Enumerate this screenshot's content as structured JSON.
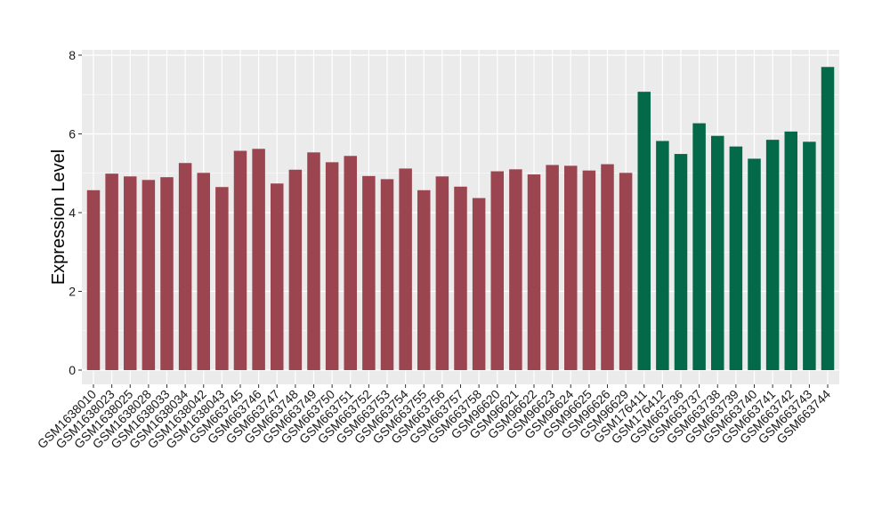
{
  "chart_data": {
    "type": "bar",
    "title": "",
    "xlabel": "",
    "ylabel": "Expression Level",
    "ylim": [
      0,
      8
    ],
    "yticks": [
      0,
      2,
      4,
      6,
      8
    ],
    "grid": true,
    "legend": "none",
    "colors": {
      "group_a": "#9a4550",
      "group_b": "#046948",
      "panel": "#ebebeb",
      "gridline": "#ffffff"
    },
    "categories": [
      "GSM1638010",
      "GSM1638023",
      "GSM1638025",
      "GSM1638028",
      "GSM1638033",
      "GSM1638034",
      "GSM1638042",
      "GSM1638043",
      "GSM663745",
      "GSM663746",
      "GSM663747",
      "GSM663748",
      "GSM663749",
      "GSM663750",
      "GSM663751",
      "GSM663752",
      "GSM663753",
      "GSM663754",
      "GSM663755",
      "GSM663756",
      "GSM663757",
      "GSM663758",
      "GSM96620",
      "GSM96621",
      "GSM96622",
      "GSM96623",
      "GSM96624",
      "GSM96625",
      "GSM96626",
      "GSM96629",
      "GSM176411",
      "GSM176412",
      "GSM663736",
      "GSM663737",
      "GSM663738",
      "GSM663739",
      "GSM663740",
      "GSM663741",
      "GSM663742",
      "GSM663743",
      "GSM663744"
    ],
    "values": [
      4.57,
      4.99,
      4.92,
      4.83,
      4.9,
      5.26,
      5.01,
      4.65,
      5.57,
      5.62,
      4.74,
      5.09,
      5.53,
      5.28,
      5.44,
      4.93,
      4.85,
      5.12,
      4.57,
      4.92,
      4.66,
      4.37,
      5.05,
      5.1,
      4.97,
      5.21,
      5.19,
      5.07,
      5.23,
      5.01,
      7.07,
      5.82,
      5.49,
      6.27,
      5.95,
      5.68,
      5.37,
      5.85,
      6.06,
      5.8,
      7.7
    ],
    "groups": [
      "a",
      "a",
      "a",
      "a",
      "a",
      "a",
      "a",
      "a",
      "a",
      "a",
      "a",
      "a",
      "a",
      "a",
      "a",
      "a",
      "a",
      "a",
      "a",
      "a",
      "a",
      "a",
      "a",
      "a",
      "a",
      "a",
      "a",
      "a",
      "a",
      "a",
      "b",
      "b",
      "b",
      "b",
      "b",
      "b",
      "b",
      "b",
      "b",
      "b",
      "b"
    ]
  }
}
